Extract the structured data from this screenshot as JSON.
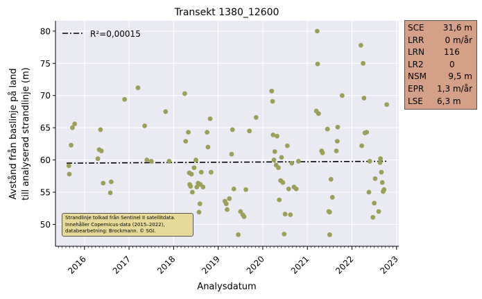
{
  "chart_data": {
    "type": "scatter",
    "title": "Transekt 1380_12600",
    "xlabel": "Analysdatum",
    "ylabel_lines": [
      "Avstånd från baslinje på land",
      "till analyserad strandlinje (m)"
    ],
    "xlim": [
      2015.35,
      2023.05
    ],
    "ylim": [
      46.6,
      81.6
    ],
    "xticks": [
      "2016",
      "2017",
      "2018",
      "2019",
      "2020",
      "2021",
      "2022",
      "2023"
    ],
    "yticks": [
      "50",
      "55",
      "60",
      "65",
      "70",
      "75",
      "80"
    ],
    "grid": true,
    "legend": {
      "label": "R²=0,00015",
      "placement": "top-left"
    },
    "trend": {
      "x": [
        2015.6,
        2022.8
      ],
      "y": [
        59.5,
        59.8
      ]
    },
    "point_color": "#9b9f5a",
    "points": [
      [
        2015.65,
        59.1
      ],
      [
        2015.66,
        57.8
      ],
      [
        2015.7,
        62.3
      ],
      [
        2015.73,
        65.0
      ],
      [
        2015.78,
        65.6
      ],
      [
        2016.3,
        60.2
      ],
      [
        2016.33,
        61.6
      ],
      [
        2016.36,
        64.7
      ],
      [
        2016.38,
        61.4
      ],
      [
        2016.42,
        56.4
      ],
      [
        2016.58,
        54.9
      ],
      [
        2016.6,
        56.6
      ],
      [
        2016.9,
        69.4
      ],
      [
        2017.2,
        71.2
      ],
      [
        2017.35,
        65.3
      ],
      [
        2017.4,
        60.0
      ],
      [
        2017.5,
        59.8
      ],
      [
        2017.82,
        67.5
      ],
      [
        2017.9,
        59.8
      ],
      [
        2018.25,
        70.3
      ],
      [
        2018.27,
        62.9
      ],
      [
        2018.33,
        64.3
      ],
      [
        2018.35,
        58.0
      ],
      [
        2018.36,
        56.2
      ],
      [
        2018.38,
        55.9
      ],
      [
        2018.4,
        57.8
      ],
      [
        2018.42,
        55.0
      ],
      [
        2018.46,
        58.8
      ],
      [
        2018.5,
        60.0
      ],
      [
        2018.52,
        55.8
      ],
      [
        2018.55,
        56.4
      ],
      [
        2018.57,
        51.9
      ],
      [
        2018.59,
        53.2
      ],
      [
        2018.6,
        56.2
      ],
      [
        2018.62,
        58.1
      ],
      [
        2018.66,
        55.8
      ],
      [
        2018.75,
        64.3
      ],
      [
        2018.77,
        62.0
      ],
      [
        2018.82,
        66.4
      ],
      [
        2018.84,
        58.1
      ],
      [
        2019.15,
        53.6
      ],
      [
        2019.18,
        53.2
      ],
      [
        2019.2,
        52.3
      ],
      [
        2019.25,
        54.0
      ],
      [
        2019.3,
        60.9
      ],
      [
        2019.32,
        64.7
      ],
      [
        2019.35,
        55.5
      ],
      [
        2019.45,
        48.4
      ],
      [
        2019.5,
        52.0
      ],
      [
        2019.55,
        51.5
      ],
      [
        2019.58,
        51.2
      ],
      [
        2019.62,
        55.4
      ],
      [
        2019.7,
        64.5
      ],
      [
        2019.85,
        66.6
      ],
      [
        2020.2,
        70.7
      ],
      [
        2020.22,
        69.1
      ],
      [
        2020.23,
        63.9
      ],
      [
        2020.25,
        60.0
      ],
      [
        2020.27,
        61.3
      ],
      [
        2020.3,
        59.2
      ],
      [
        2020.32,
        63.7
      ],
      [
        2020.35,
        58.8
      ],
      [
        2020.37,
        53.8
      ],
      [
        2020.4,
        56.8
      ],
      [
        2020.42,
        60.4
      ],
      [
        2020.45,
        56.5
      ],
      [
        2020.48,
        48.5
      ],
      [
        2020.5,
        51.6
      ],
      [
        2020.55,
        62.2
      ],
      [
        2020.58,
        55.5
      ],
      [
        2020.62,
        51.5
      ],
      [
        2020.65,
        59.5
      ],
      [
        2020.7,
        55.8
      ],
      [
        2020.75,
        55.5
      ],
      [
        2020.8,
        59.8
      ],
      [
        2021.2,
        67.6
      ],
      [
        2021.22,
        80.0
      ],
      [
        2021.23,
        74.9
      ],
      [
        2021.25,
        67.2
      ],
      [
        2021.32,
        61.4
      ],
      [
        2021.34,
        61.1
      ],
      [
        2021.45,
        64.8
      ],
      [
        2021.48,
        52.0
      ],
      [
        2021.5,
        51.9
      ],
      [
        2021.53,
        57.0
      ],
      [
        2021.56,
        54.2
      ],
      [
        2021.65,
        61.4
      ],
      [
        2021.67,
        62.9
      ],
      [
        2021.68,
        65.1
      ],
      [
        2021.78,
        70.0
      ],
      [
        2021.5,
        48.4
      ],
      [
        2022.2,
        77.8
      ],
      [
        2022.22,
        62.2
      ],
      [
        2022.25,
        75.0
      ],
      [
        2022.27,
        69.6
      ],
      [
        2022.29,
        64.2
      ],
      [
        2022.33,
        64.3
      ],
      [
        2022.38,
        55.0
      ],
      [
        2022.4,
        59.8
      ],
      [
        2022.47,
        51.1
      ],
      [
        2022.5,
        53.3
      ],
      [
        2022.52,
        57.1
      ],
      [
        2022.6,
        52.0
      ],
      [
        2022.63,
        59.6
      ],
      [
        2022.64,
        60.2
      ],
      [
        2022.66,
        58.1
      ],
      [
        2022.68,
        56.5
      ],
      [
        2022.7,
        55.1
      ],
      [
        2022.72,
        55.4
      ],
      [
        2022.78,
        68.6
      ]
    ]
  },
  "stats": [
    {
      "label": "SCE",
      "value": "31,6 m"
    },
    {
      "label": "LRR",
      "value": "0 m/år"
    },
    {
      "label": "LRN",
      "value": "116"
    },
    {
      "label": "LR2",
      "value": "0"
    },
    {
      "label": "NSM",
      "value": "9,5 m"
    },
    {
      "label": "EPR",
      "value": "1,3 m/år"
    },
    {
      "label": "LSE",
      "value": "6,3 m"
    }
  ],
  "source_note": "Strandlinje tolkad från Sentinel II satellitdata. Innehåller Copernicus-data (2015–2022), databearbetning: Brockmann. © SGI."
}
